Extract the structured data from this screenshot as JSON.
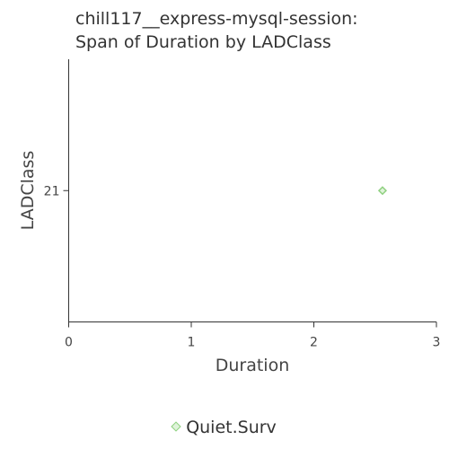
{
  "chart_data": {
    "type": "scatter",
    "title": [
      "chill117__express-mysql-session:",
      "Span of Duration by LADClass"
    ],
    "xlabel": "Duration",
    "ylabel": "LADClass",
    "xlim": [
      0,
      3
    ],
    "x_ticks": [
      "0",
      "1",
      "2",
      "3"
    ],
    "y_categories": [
      "21"
    ],
    "grid": false,
    "legend_position": "bottom",
    "series": [
      {
        "name": "Quiet.Surv",
        "color": "#8ed07f",
        "points": [
          {
            "x": 2.56,
            "y": "21"
          }
        ]
      }
    ]
  }
}
